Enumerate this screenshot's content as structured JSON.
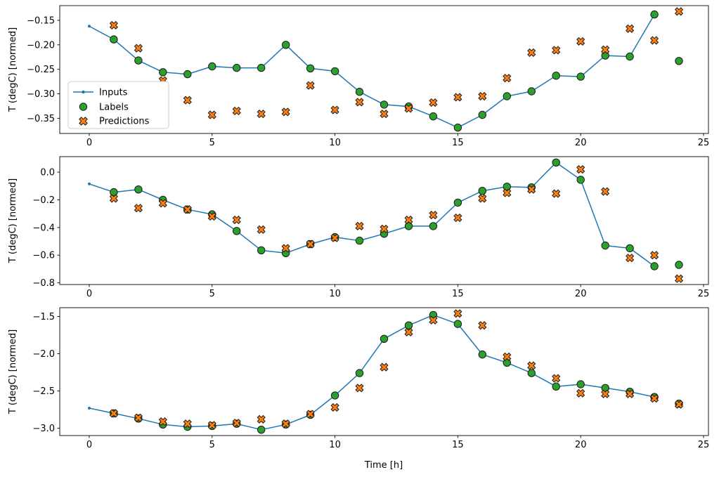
{
  "figure": {
    "background": "#ffffff",
    "xlabel": "Time [h]",
    "ylabel": "T (degC) [normed]"
  },
  "legend": {
    "position": "center left of subplot 1",
    "items": [
      {
        "label": "Inputs",
        "marker": "line-with-dot",
        "color": "#1f77b4"
      },
      {
        "label": "Labels",
        "marker": "circle",
        "color": "#2ca02c"
      },
      {
        "label": "Predictions",
        "marker": "x",
        "color": "#ff7f0e"
      }
    ]
  },
  "chart_data": [
    {
      "type": "line",
      "title": "",
      "xlabel": "",
      "ylabel": "T (degC) [normed]",
      "xlim": [
        -1.2,
        25.2
      ],
      "ylim": [
        -0.381,
        -0.12
      ],
      "xticks": [
        0,
        5,
        10,
        15,
        20,
        25
      ],
      "xtick_labels": [
        "0",
        "5",
        "10",
        "15",
        "20",
        "25"
      ],
      "yticks": [
        -0.15,
        -0.2,
        -0.25,
        -0.3,
        -0.35
      ],
      "ytick_labels": [
        "−0.15",
        "−0.20",
        "−0.25",
        "−0.30",
        "−0.35"
      ],
      "grid": false,
      "legend_visible": true,
      "series": [
        {
          "name": "Inputs",
          "style": "line-dot",
          "color": "#1f77b4",
          "x": [
            0,
            1,
            2,
            3,
            4,
            5,
            6,
            7,
            8,
            9,
            10,
            11,
            12,
            13,
            14,
            15,
            16,
            17,
            18,
            19,
            20,
            21,
            22,
            23
          ],
          "y": [
            -0.162,
            -0.189,
            -0.232,
            -0.256,
            -0.26,
            -0.244,
            -0.247,
            -0.247,
            -0.2,
            -0.248,
            -0.254,
            -0.296,
            -0.322,
            -0.326,
            -0.346,
            -0.369,
            -0.343,
            -0.305,
            -0.295,
            -0.263,
            -0.265,
            -0.222,
            -0.224,
            -0.138
          ]
        },
        {
          "name": "Labels",
          "style": "circle",
          "color": "#2ca02c",
          "x": [
            1,
            2,
            3,
            4,
            5,
            6,
            7,
            8,
            9,
            10,
            11,
            12,
            13,
            14,
            15,
            16,
            17,
            18,
            19,
            20,
            21,
            22,
            23,
            24
          ],
          "y": [
            -0.189,
            -0.232,
            -0.256,
            -0.26,
            -0.244,
            -0.247,
            -0.247,
            -0.2,
            -0.248,
            -0.254,
            -0.296,
            -0.322,
            -0.326,
            -0.346,
            -0.369,
            -0.343,
            -0.305,
            -0.295,
            -0.263,
            -0.265,
            -0.222,
            -0.224,
            -0.138,
            -0.233
          ]
        },
        {
          "name": "Predictions",
          "style": "x",
          "color": "#ff7f0e",
          "x": [
            1,
            2,
            3,
            4,
            5,
            6,
            7,
            8,
            9,
            10,
            11,
            12,
            13,
            14,
            15,
            16,
            17,
            18,
            19,
            20,
            21,
            22,
            23,
            24
          ],
          "y": [
            -0.16,
            -0.207,
            -0.273,
            -0.313,
            -0.343,
            -0.335,
            -0.341,
            -0.337,
            -0.283,
            -0.333,
            -0.317,
            -0.341,
            -0.33,
            -0.318,
            -0.307,
            -0.305,
            -0.268,
            -0.216,
            -0.211,
            -0.193,
            -0.21,
            -0.167,
            -0.191,
            -0.132
          ]
        }
      ]
    },
    {
      "type": "line",
      "title": "",
      "xlabel": "",
      "ylabel": "T (degC) [normed]",
      "xlim": [
        -1.2,
        25.2
      ],
      "ylim": [
        -0.812,
        0.112
      ],
      "xticks": [
        0,
        5,
        10,
        15,
        20,
        25
      ],
      "xtick_labels": [
        "0",
        "5",
        "10",
        "15",
        "20",
        "25"
      ],
      "yticks": [
        0.0,
        -0.2,
        -0.4,
        -0.6,
        -0.8
      ],
      "ytick_labels": [
        "0.0",
        "−0.2",
        "−0.4",
        "−0.6",
        "−0.8"
      ],
      "grid": false,
      "legend_visible": false,
      "series": [
        {
          "name": "Inputs",
          "style": "line-dot",
          "color": "#1f77b4",
          "x": [
            0,
            1,
            2,
            3,
            4,
            5,
            6,
            7,
            8,
            9,
            10,
            11,
            12,
            13,
            14,
            15,
            16,
            17,
            18,
            19,
            20,
            21,
            22,
            23
          ],
          "y": [
            -0.085,
            -0.145,
            -0.125,
            -0.2,
            -0.27,
            -0.305,
            -0.425,
            -0.565,
            -0.585,
            -0.52,
            -0.47,
            -0.495,
            -0.445,
            -0.39,
            -0.39,
            -0.22,
            -0.135,
            -0.105,
            -0.11,
            0.07,
            -0.055,
            -0.53,
            -0.55,
            -0.68
          ]
        },
        {
          "name": "Labels",
          "style": "circle",
          "color": "#2ca02c",
          "x": [
            1,
            2,
            3,
            4,
            5,
            6,
            7,
            8,
            9,
            10,
            11,
            12,
            13,
            14,
            15,
            16,
            17,
            18,
            19,
            20,
            21,
            22,
            23,
            24
          ],
          "y": [
            -0.145,
            -0.125,
            -0.2,
            -0.27,
            -0.305,
            -0.425,
            -0.565,
            -0.585,
            -0.52,
            -0.47,
            -0.495,
            -0.445,
            -0.39,
            -0.39,
            -0.22,
            -0.135,
            -0.105,
            -0.11,
            0.07,
            -0.055,
            -0.53,
            -0.55,
            -0.68,
            -0.67
          ]
        },
        {
          "name": "Predictions",
          "style": "x",
          "color": "#ff7f0e",
          "x": [
            1,
            2,
            3,
            4,
            5,
            6,
            7,
            8,
            9,
            10,
            11,
            12,
            13,
            14,
            15,
            16,
            17,
            18,
            19,
            20,
            21,
            22,
            23,
            24
          ],
          "y": [
            -0.19,
            -0.26,
            -0.225,
            -0.27,
            -0.32,
            -0.345,
            -0.415,
            -0.55,
            -0.52,
            -0.475,
            -0.39,
            -0.41,
            -0.345,
            -0.31,
            -0.33,
            -0.19,
            -0.15,
            -0.125,
            -0.155,
            0.02,
            -0.14,
            -0.62,
            -0.6,
            -0.77
          ]
        }
      ]
    },
    {
      "type": "line",
      "title": "",
      "xlabel": "Time [h]",
      "ylabel": "T (degC) [normed]",
      "xlim": [
        -1.2,
        25.2
      ],
      "ylim": [
        -3.098,
        -1.382
      ],
      "xticks": [
        0,
        5,
        10,
        15,
        20,
        25
      ],
      "xtick_labels": [
        "0",
        "5",
        "10",
        "15",
        "20",
        "25"
      ],
      "yticks": [
        -1.5,
        -2.0,
        -2.5,
        -3.0
      ],
      "ytick_labels": [
        "−1.5",
        "−2.0",
        "−2.5",
        "−3.0"
      ],
      "grid": false,
      "legend_visible": false,
      "series": [
        {
          "name": "Inputs",
          "style": "line-dot",
          "color": "#1f77b4",
          "x": [
            0,
            1,
            2,
            3,
            4,
            5,
            6,
            7,
            8,
            9,
            10,
            11,
            12,
            13,
            14,
            15,
            16,
            17,
            18,
            19,
            20,
            21,
            22,
            23
          ],
          "y": [
            -2.73,
            -2.8,
            -2.87,
            -2.95,
            -2.98,
            -2.97,
            -2.94,
            -3.02,
            -2.95,
            -2.82,
            -2.56,
            -2.26,
            -1.8,
            -1.62,
            -1.48,
            -1.6,
            -2.01,
            -2.12,
            -2.26,
            -2.44,
            -2.41,
            -2.46,
            -2.51,
            -2.58
          ]
        },
        {
          "name": "Labels",
          "style": "circle",
          "color": "#2ca02c",
          "x": [
            1,
            2,
            3,
            4,
            5,
            6,
            7,
            8,
            9,
            10,
            11,
            12,
            13,
            14,
            15,
            16,
            17,
            18,
            19,
            20,
            21,
            22,
            23,
            24
          ],
          "y": [
            -2.8,
            -2.87,
            -2.95,
            -2.98,
            -2.97,
            -2.94,
            -3.02,
            -2.95,
            -2.82,
            -2.56,
            -2.26,
            -1.8,
            -1.62,
            -1.48,
            -1.6,
            -2.01,
            -2.12,
            -2.26,
            -2.44,
            -2.41,
            -2.46,
            -2.51,
            -2.58,
            -2.67
          ]
        },
        {
          "name": "Predictions",
          "style": "x",
          "color": "#ff7f0e",
          "x": [
            1,
            2,
            3,
            4,
            5,
            6,
            7,
            8,
            9,
            10,
            11,
            12,
            13,
            14,
            15,
            16,
            17,
            18,
            19,
            20,
            21,
            22,
            23,
            24
          ],
          "y": [
            -2.8,
            -2.86,
            -2.91,
            -2.94,
            -2.96,
            -2.93,
            -2.88,
            -2.94,
            -2.81,
            -2.72,
            -2.46,
            -2.18,
            -1.71,
            -1.55,
            -1.46,
            -1.62,
            -2.04,
            -2.16,
            -2.33,
            -2.53,
            -2.54,
            -2.54,
            -2.6,
            -2.68
          ]
        }
      ]
    }
  ]
}
